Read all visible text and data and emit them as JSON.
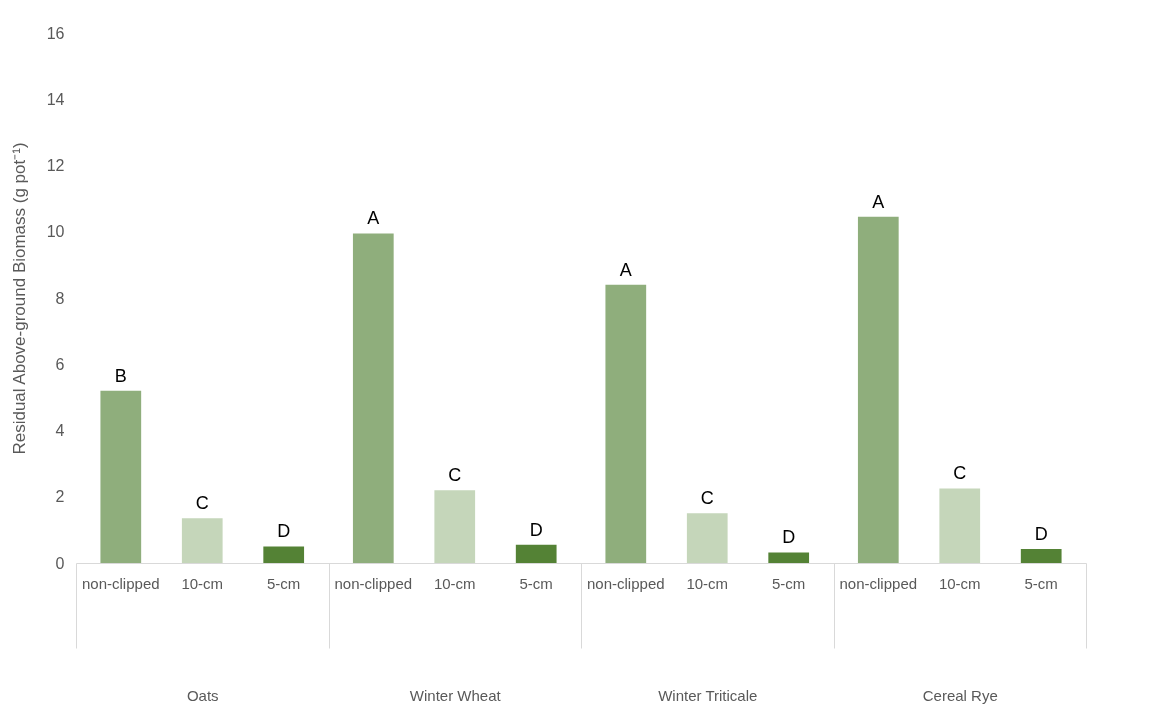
{
  "chart_data": {
    "type": "bar",
    "ylabel": "Residual Above-ground Biomass (g pot⁻¹)",
    "categories": [
      "Oats",
      "Winter Wheat",
      "Winter Triticale",
      "Cereal Rye"
    ],
    "series": [
      {
        "name": "non-clipped",
        "color": "#8fae7c",
        "values": [
          5.2,
          9.95,
          8.4,
          10.45
        ],
        "value_labels": [
          "B",
          "A",
          "A",
          "A"
        ]
      },
      {
        "name": "10-cm",
        "color": "#c5d6ba",
        "values": [
          1.35,
          2.2,
          1.5,
          2.25
        ],
        "value_labels": [
          "C",
          "C",
          "C",
          "C"
        ]
      },
      {
        "name": "5-cm",
        "color": "#548235",
        "values": [
          0.5,
          0.55,
          0.32,
          0.42
        ],
        "value_labels": [
          "D",
          "D",
          "D",
          "D"
        ]
      }
    ],
    "ylim": [
      0,
      16
    ],
    "yticks": [
      0,
      2,
      4,
      6,
      8,
      10,
      12,
      14,
      16
    ],
    "legend": false
  }
}
